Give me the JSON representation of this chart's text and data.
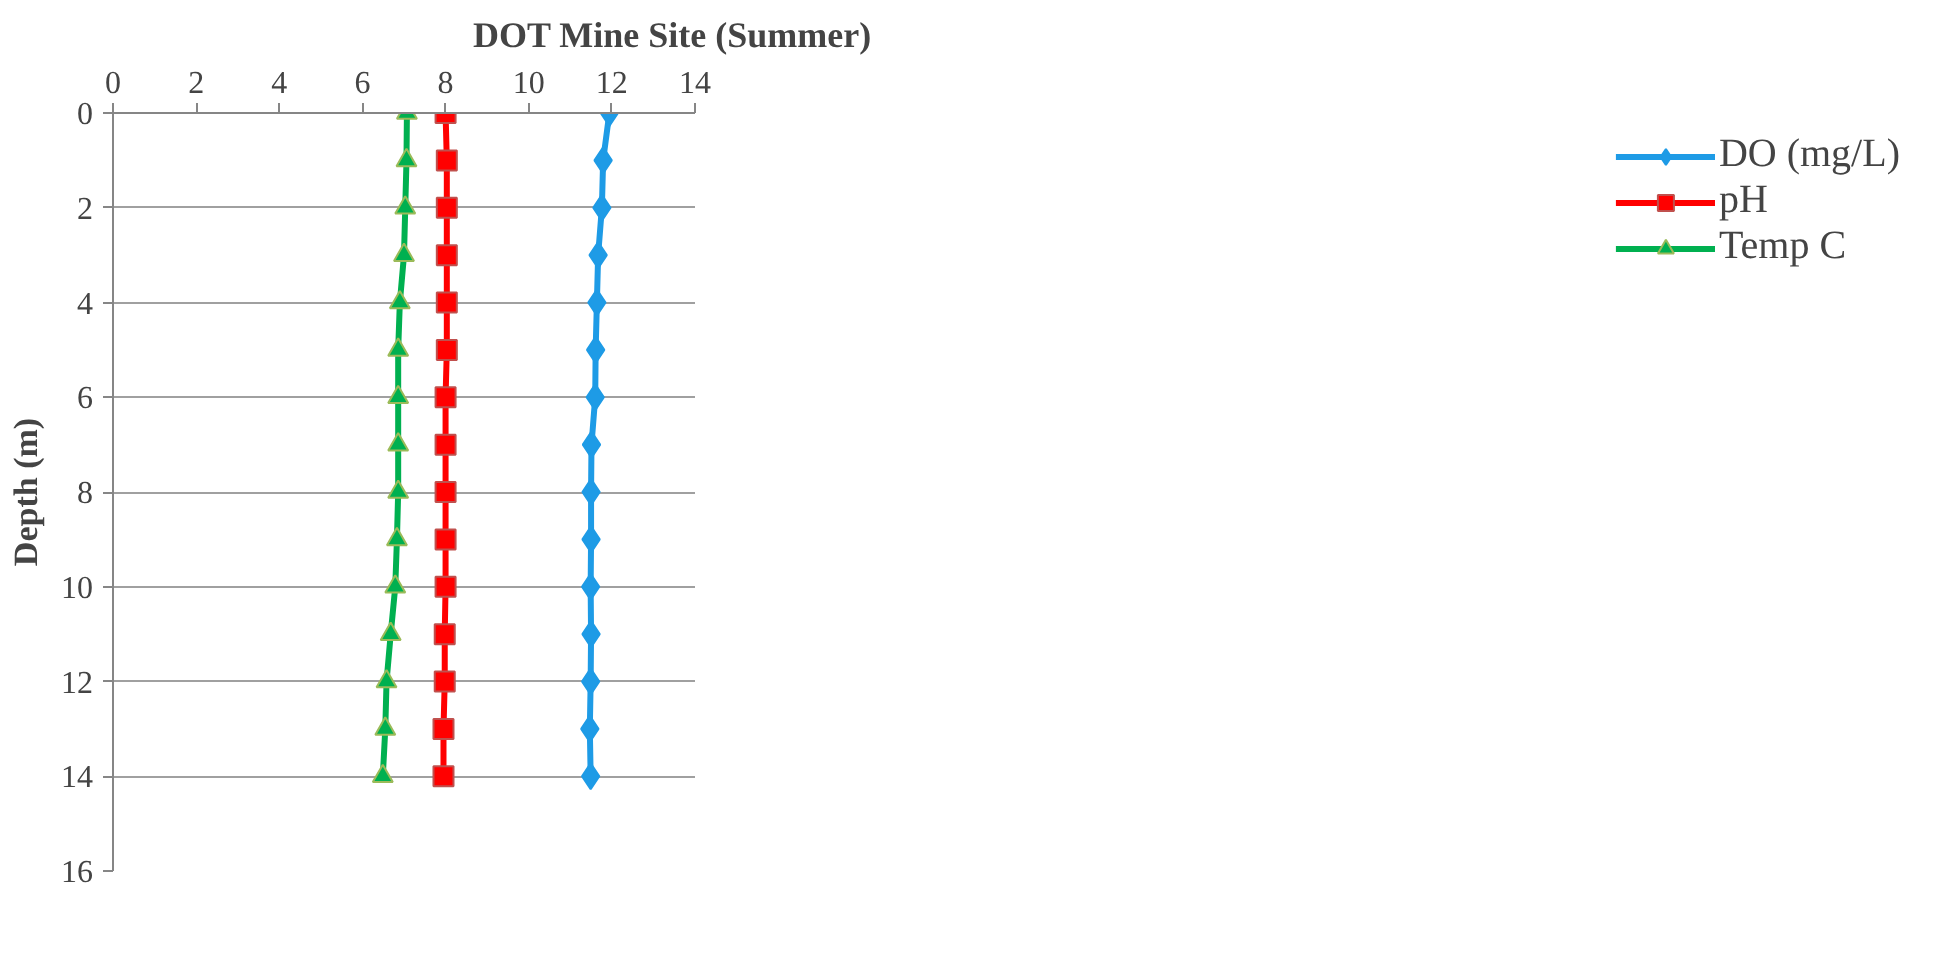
{
  "chart_data": {
    "type": "line",
    "title": "DOT Mine Site (Summer)",
    "ylabel": "Depth (m)",
    "x": [
      0,
      1,
      2,
      3,
      4,
      5,
      6,
      7,
      8,
      9,
      10,
      11,
      12,
      13,
      14
    ],
    "orientation": "horizontal",
    "series": [
      {
        "name": "DO (mg/L)",
        "color": "#1e9be6",
        "marker": "diamond",
        "values": [
          11.94,
          11.79,
          11.76,
          11.67,
          11.64,
          11.61,
          11.6,
          11.51,
          11.5,
          11.5,
          11.49,
          11.5,
          11.49,
          11.47,
          11.49
        ]
      },
      {
        "name": "pH",
        "color": "#ff0000",
        "marker": "square",
        "values": [
          8.0,
          8.03,
          8.03,
          8.03,
          8.03,
          8.03,
          8.0,
          8.0,
          8.0,
          8.0,
          8.0,
          7.98,
          7.98,
          7.95,
          7.95
        ]
      },
      {
        "name": "Temp C",
        "color": "#00b050",
        "marker": "triangle",
        "values": [
          7.07,
          7.06,
          7.03,
          7.0,
          6.9,
          6.86,
          6.86,
          6.86,
          6.86,
          6.83,
          6.79,
          6.68,
          6.58,
          6.55,
          6.49
        ]
      }
    ],
    "xlim": [
      0,
      14
    ],
    "xticks": [
      0,
      2,
      4,
      6,
      8,
      10,
      12,
      14
    ],
    "ylim": [
      16,
      0
    ],
    "yticks": [
      0,
      2,
      4,
      6,
      8,
      10,
      12,
      14,
      16
    ],
    "grid": "y",
    "legend": "top right"
  }
}
